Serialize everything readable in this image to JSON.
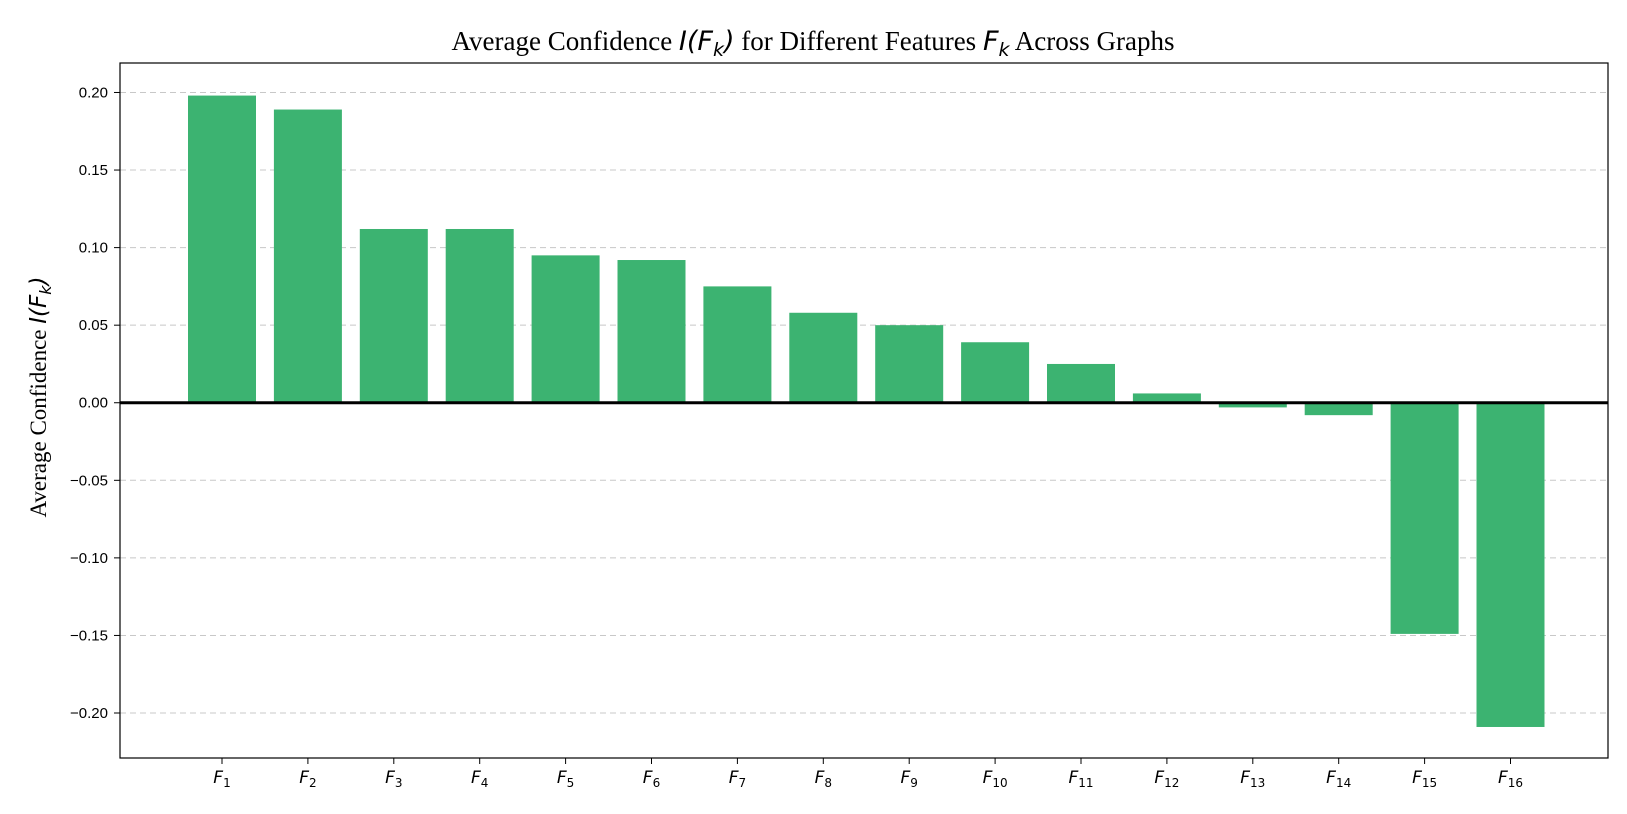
{
  "chart_data": {
    "type": "bar",
    "title": {
      "prefix": "Average Confidence ",
      "math1_base": "I",
      "math1_sub": "k",
      "middle": " for Different Features ",
      "math2_sub": "k",
      "suffix": " Across Graphs"
    },
    "ylabel": {
      "prefix": "Average Confidence ",
      "math_base": "I",
      "math_sub": "k"
    },
    "xlabel": "",
    "category_symbol": "F",
    "categories": [
      "F1",
      "F2",
      "F3",
      "F4",
      "F5",
      "F6",
      "F7",
      "F8",
      "F9",
      "F10",
      "F11",
      "F12",
      "F13",
      "F14",
      "F15",
      "F16"
    ],
    "category_subscripts": [
      "1",
      "2",
      "3",
      "4",
      "5",
      "6",
      "7",
      "8",
      "9",
      "10",
      "11",
      "12",
      "13",
      "14",
      "15",
      "16"
    ],
    "values": [
      0.198,
      0.189,
      0.112,
      0.112,
      0.095,
      0.092,
      0.075,
      0.058,
      0.05,
      0.039,
      0.025,
      0.006,
      -0.003,
      -0.008,
      -0.149,
      -0.209
    ],
    "ylim": [
      -0.229,
      0.219
    ],
    "yticks": [
      0.2,
      0.15,
      0.1,
      0.05,
      0.0,
      -0.05,
      -0.1,
      -0.15,
      -0.2
    ],
    "ytick_labels": [
      "0.20",
      "0.15",
      "0.10",
      "0.05",
      "0.00",
      "−0.05",
      "−0.10",
      "−0.15",
      "−0.20"
    ],
    "bar_color": "#3cb371",
    "grid": "y-dashed",
    "zero_line": true,
    "legend": "none"
  }
}
